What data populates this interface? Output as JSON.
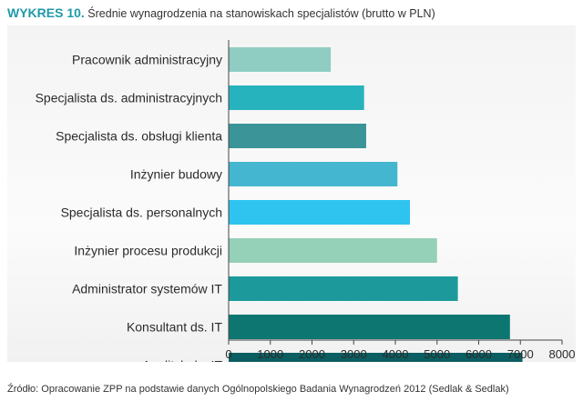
{
  "header": {
    "label": "WYKRES 10.",
    "text": "Średnie wynagrodzenia na stanowiskach specjalistów (brutto w PLN)"
  },
  "source": "Źródło: Opracowanie ZPP na podstawie danych Ogólnopolskiego Badania Wynagrodzeń 2012 (Sedlak & Sedlak)",
  "chart_data": {
    "type": "bar",
    "orientation": "horizontal",
    "title": "Średnie wynagrodzenia na stanowiskach specjalistów (brutto w PLN)",
    "categories": [
      "Pracownik administracyjny",
      "Specjalista ds. administracyjnych",
      "Specjalista ds. obsługi klienta",
      "Inżynier budowy",
      "Specjalista ds. personalnych",
      "Inżynier procesu produkcji",
      "Administrator systemów IT",
      "Konsultant ds. IT",
      "Analityk ds. IT"
    ],
    "values": [
      2450,
      3250,
      3300,
      4050,
      4350,
      5000,
      5500,
      6750,
      7050
    ],
    "colors": [
      "#8fcdc3",
      "#27b3bd",
      "#3a9498",
      "#45b6cf",
      "#2ec4ef",
      "#95d0b8",
      "#1c9a9b",
      "#0d7670",
      "#0b5e61"
    ],
    "xlim": [
      0,
      8000
    ],
    "xticks": [
      0,
      1000,
      2000,
      3000,
      4000,
      5000,
      6000,
      7000,
      8000
    ],
    "grid": false,
    "legend": "none"
  }
}
